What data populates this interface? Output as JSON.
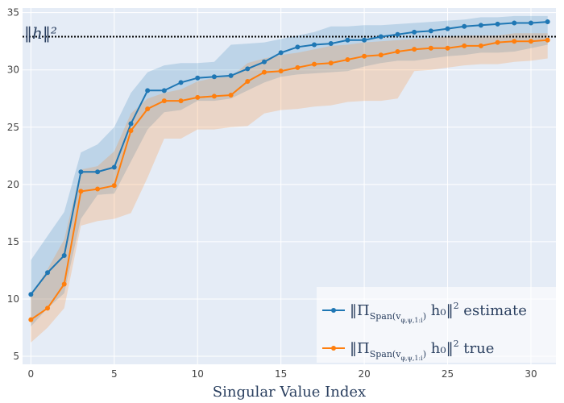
{
  "chart_data": {
    "type": "line",
    "xlabel": "Singular Value Index",
    "ylabel": "",
    "xlim": [
      -0.5,
      31.5
    ],
    "ylim": [
      4.3,
      35.4
    ],
    "x_ticks": [
      0,
      5,
      10,
      15,
      20,
      25,
      30
    ],
    "y_ticks": [
      5,
      10,
      15,
      20,
      25,
      30,
      35
    ],
    "grid": true,
    "legend_position": "bottom-right",
    "reference_line": {
      "label": "‖h‖²",
      "value": 32.9,
      "style": "dotted",
      "color": "#000000"
    },
    "x": [
      0,
      1,
      2,
      3,
      4,
      5,
      6,
      7,
      8,
      9,
      10,
      11,
      12,
      13,
      14,
      15,
      16,
      17,
      18,
      19,
      20,
      21,
      22,
      23,
      24,
      25,
      26,
      27,
      28,
      29,
      30,
      31
    ],
    "series": [
      {
        "name": "‖Π_Span(v_φ,ψ,1:i) h₀‖² estimate",
        "legend_main": "‖Π",
        "legend_sub": "Span(v",
        "legend_subsub": "φ,ψ,1:i",
        "legend_sub_close": ")",
        "legend_tail": " h₀‖",
        "legend_sup": "2",
        "legend_word": " estimate",
        "color": "#1f77b4",
        "values": [
          10.4,
          12.3,
          13.8,
          21.1,
          21.1,
          21.5,
          25.3,
          28.2,
          28.2,
          28.9,
          29.3,
          29.4,
          29.5,
          30.1,
          30.7,
          31.5,
          32.0,
          32.2,
          32.3,
          32.6,
          32.6,
          32.9,
          33.1,
          33.3,
          33.4,
          33.6,
          33.8,
          33.9,
          34.0,
          34.1,
          34.1,
          34.2
        ],
        "band_upper": [
          13.4,
          15.5,
          17.6,
          22.8,
          23.5,
          25.0,
          28.0,
          29.8,
          30.4,
          30.6,
          30.6,
          30.7,
          32.2,
          32.3,
          32.4,
          32.7,
          33.0,
          33.3,
          33.8,
          33.8,
          33.9,
          33.9,
          34.0,
          34.1,
          34.2,
          34.3,
          34.4,
          34.6,
          34.6,
          34.7,
          34.7,
          34.7
        ],
        "band_lower": [
          7.6,
          9.2,
          10.5,
          17.0,
          19.1,
          19.2,
          22.0,
          24.8,
          26.3,
          26.5,
          27.3,
          27.3,
          27.5,
          28.2,
          28.9,
          29.4,
          29.6,
          29.7,
          29.8,
          29.9,
          30.3,
          30.6,
          30.8,
          30.8,
          31.0,
          31.2,
          31.3,
          31.5,
          31.5,
          31.6,
          31.9,
          32.2
        ]
      },
      {
        "name": "‖Π_Span(v_φ,ψ,1:i) h₀‖² true",
        "legend_main": "‖Π",
        "legend_sub": "Span(v",
        "legend_subsub": "φ,ψ,1:i",
        "legend_sub_close": ")",
        "legend_tail": " h₀‖",
        "legend_sup": "2",
        "legend_word": " true",
        "color": "#ff7f0e",
        "values": [
          8.2,
          9.2,
          11.3,
          19.4,
          19.6,
          19.9,
          24.7,
          26.6,
          27.3,
          27.3,
          27.6,
          27.7,
          27.8,
          29.0,
          29.8,
          29.9,
          30.2,
          30.5,
          30.6,
          30.9,
          31.2,
          31.3,
          31.6,
          31.8,
          31.9,
          31.9,
          32.1,
          32.1,
          32.4,
          32.5,
          32.5,
          32.6
        ],
        "band_upper": [
          10.4,
          12.6,
          15.2,
          21.3,
          21.6,
          22.9,
          26.2,
          27.5,
          28.0,
          28.3,
          29.0,
          29.3,
          29.4,
          30.6,
          31.0,
          31.3,
          31.5,
          31.8,
          32.1,
          32.2,
          32.4,
          32.5,
          32.6,
          32.7,
          32.8,
          32.9,
          33.0,
          33.0,
          33.0,
          33.2,
          33.2,
          33.2
        ],
        "band_lower": [
          6.2,
          7.5,
          9.2,
          16.4,
          16.8,
          17.0,
          17.5,
          20.6,
          24.0,
          24.0,
          24.8,
          24.8,
          25.0,
          25.1,
          26.2,
          26.5,
          26.6,
          26.8,
          26.9,
          27.2,
          27.3,
          27.3,
          27.5,
          29.9,
          30.0,
          30.2,
          30.4,
          30.5,
          30.5,
          30.7,
          30.8,
          31.0
        ]
      }
    ]
  }
}
